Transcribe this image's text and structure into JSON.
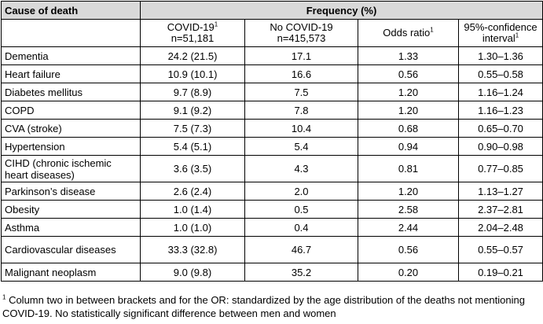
{
  "table": {
    "header": {
      "cause": "Cause of death",
      "frequency": "Frequency (%)"
    },
    "subheader": {
      "covid_label": "COVID-19",
      "covid_sup": "1",
      "covid_n": "n=51,181",
      "nocovid_label": "No COVID-19",
      "nocovid_n": "n=415,573",
      "or_label": "Odds ratio",
      "or_sup": "1",
      "ci_line1": "95%-confidence",
      "ci_line2": "interval",
      "ci_sup": "1"
    },
    "rows": [
      {
        "cause": "Dementia",
        "covid": "24.2 (21.5)",
        "nocovid": "17.1",
        "or": "1.33",
        "ci": "1.30–1.36"
      },
      {
        "cause": "Heart failure",
        "covid": "10.9 (10.1)",
        "nocovid": "16.6",
        "or": "0.56",
        "ci": "0.55–0.58"
      },
      {
        "cause": "Diabetes mellitus",
        "covid": "9.7 (8.9)",
        "nocovid": "7.5",
        "or": "1.20",
        "ci": "1.16–1.24"
      },
      {
        "cause": "COPD",
        "covid": "9.1 (9.2)",
        "nocovid": "7.8",
        "or": "1.20",
        "ci": "1.16–1.23"
      },
      {
        "cause": "CVA (stroke)",
        "covid": "7.5 (7.3)",
        "nocovid": "10.4",
        "or": "0.68",
        "ci": "0.65–0.70"
      },
      {
        "cause": "Hypertension",
        "covid": "5.4 (5.1)",
        "nocovid": "5.4",
        "or": "0.94",
        "ci": "0.90–0.98"
      },
      {
        "cause": "CIHD (chronic ischemic heart diseases)",
        "covid": "3.6 (3.5)",
        "nocovid": "4.3",
        "or": "0.81",
        "ci": "0.77–0.85"
      },
      {
        "cause": "Parkinson’s disease",
        "covid": "2.6 (2.4)",
        "nocovid": "2.0",
        "or": "1.20",
        "ci": "1.13–1.27"
      },
      {
        "cause": "Obesity",
        "covid": "1.0 (1.4)",
        "nocovid": "0.5",
        "or": "2.58",
        "ci": "2.37–2.81"
      },
      {
        "cause": "Asthma",
        "covid": "1.0 (1.0)",
        "nocovid": "0.4",
        "or": "2.44",
        "ci": "2.04–2.48"
      },
      {
        "cause": "Cardiovascular diseases",
        "covid": "33.3 (32.8)",
        "nocovid": "46.7",
        "or": "0.56",
        "ci": "0.55–0.57"
      },
      {
        "cause": "Malignant neoplasm",
        "covid": "9.0 (9.8)",
        "nocovid": "35.2",
        "or": "0.20",
        "ci": "0.19–0.21"
      }
    ]
  },
  "footnote": {
    "sup": "1",
    "text": " Column two in between brackets and for the OR: standardized by the age distribution of the deaths not mentioning COVID-19. No statistically significant difference between men and women"
  },
  "colors": {
    "header_bg": "#d9d9d9",
    "border": "#000000"
  }
}
